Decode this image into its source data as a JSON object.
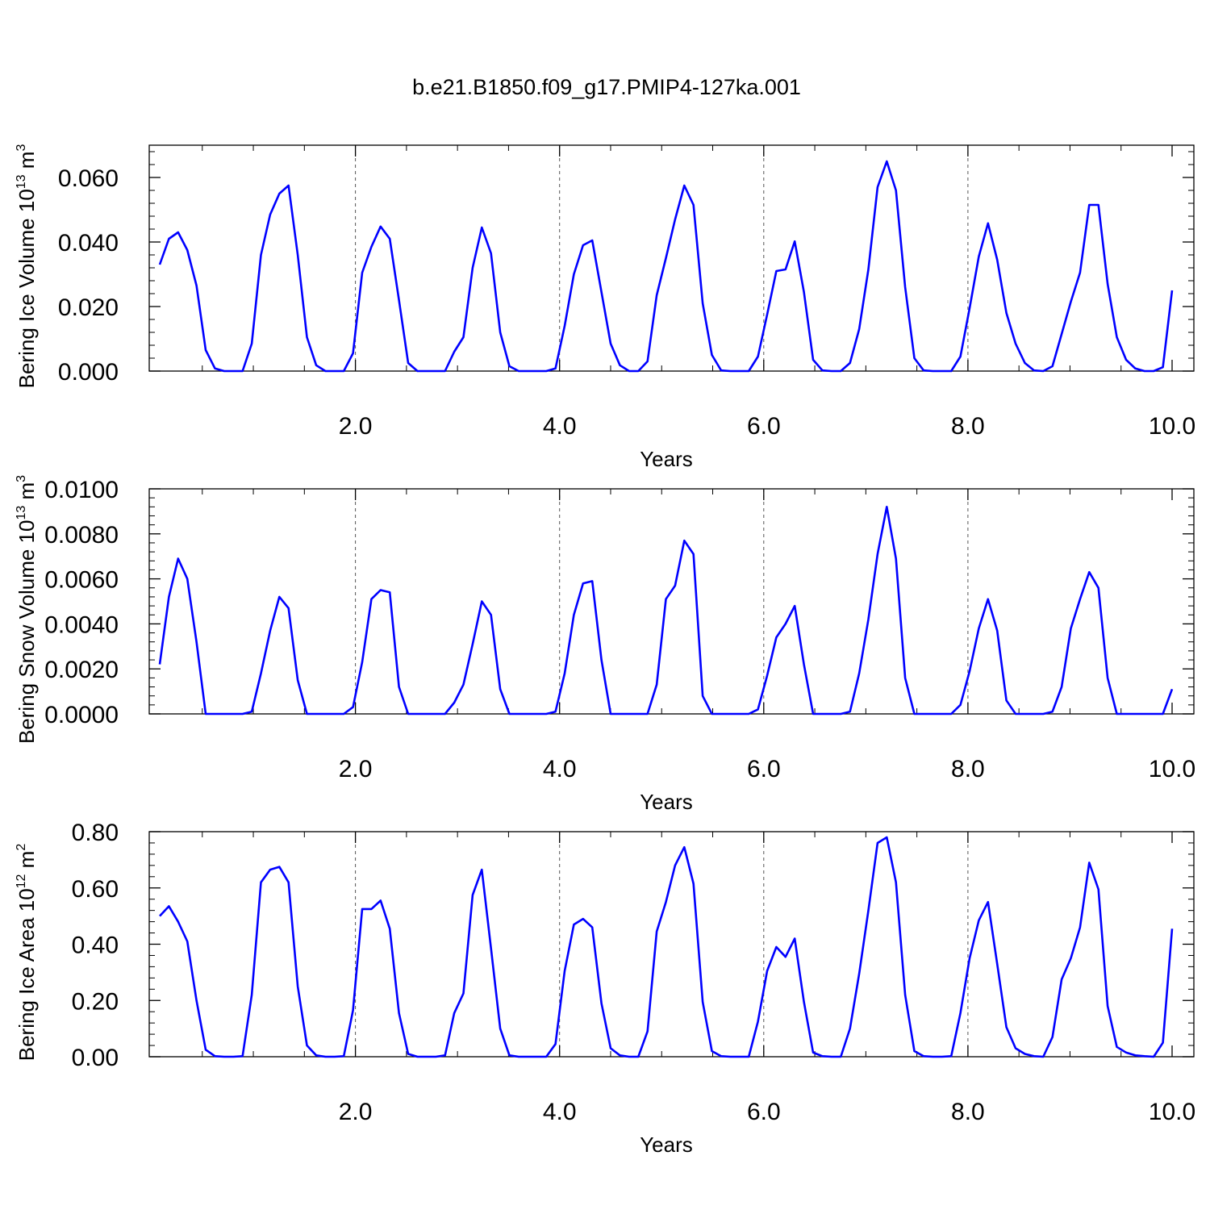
{
  "title": "b.e21.B1850.f09_g17.PMIP4-127ka.001",
  "line_color": "#0000ff",
  "chart_data": [
    {
      "type": "line",
      "ylabel": "Bering Ice Volume 10",
      "ylabel_exp": "13",
      "ylabel_unit": " m",
      "ylabel_unit_exp": "3",
      "xlabel": "Years",
      "xlim": [
        0.083,
        10.0
      ],
      "ylim": [
        0.0,
        0.07
      ],
      "xticks": [
        "2.0",
        "4.0",
        "6.0",
        "8.0",
        "10.0"
      ],
      "xtick_values": [
        2,
        4,
        6,
        8,
        10
      ],
      "yticks": [
        "0.000",
        "0.020",
        "0.040",
        "0.060"
      ],
      "ytick_values": [
        0.0,
        0.02,
        0.04,
        0.06
      ],
      "grid": "x-dashed",
      "values": [
        0.033,
        0.041,
        0.043,
        0.0375,
        0.0265,
        0.0065,
        0.0008,
        0.0,
        0.0,
        0.0,
        0.0085,
        0.036,
        0.0485,
        0.055,
        0.0575,
        0.036,
        0.0105,
        0.0018,
        0.0,
        0.0,
        0.0,
        0.0055,
        0.0305,
        0.0385,
        0.0448,
        0.041,
        0.022,
        0.0025,
        0.0,
        0.0,
        0.0,
        0.0,
        0.006,
        0.0105,
        0.032,
        0.0445,
        0.0365,
        0.012,
        0.0015,
        0.0,
        0.0,
        0.0,
        0.0,
        0.0008,
        0.014,
        0.03,
        0.039,
        0.0405,
        0.0245,
        0.0085,
        0.0018,
        0.0,
        0.0,
        0.003,
        0.0235,
        0.035,
        0.047,
        0.0575,
        0.0515,
        0.021,
        0.005,
        0.0002,
        0.0,
        0.0,
        0.0,
        0.0045,
        0.0175,
        0.031,
        0.0315,
        0.0402,
        0.0245,
        0.0035,
        0.0002,
        0.0,
        0.0,
        0.0025,
        0.013,
        0.0315,
        0.057,
        0.065,
        0.056,
        0.026,
        0.004,
        0.0002,
        0.0,
        0.0,
        0.0,
        0.0045,
        0.0195,
        0.0355,
        0.0458,
        0.0345,
        0.018,
        0.0085,
        0.0025,
        0.0002,
        0.0,
        0.0015,
        0.0115,
        0.0215,
        0.0305,
        0.0515,
        0.0515,
        0.027,
        0.0105,
        0.0035,
        0.0008,
        0.0,
        0.0,
        0.0012,
        0.025
      ]
    },
    {
      "type": "line",
      "ylabel": "Bering Snow Volume 10",
      "ylabel_exp": "13",
      "ylabel_unit": " m",
      "ylabel_unit_exp": "3",
      "xlabel": "Years",
      "xlim": [
        0.083,
        10.0
      ],
      "ylim": [
        0.0,
        0.01
      ],
      "xticks": [
        "2.0",
        "4.0",
        "6.0",
        "8.0",
        "10.0"
      ],
      "xtick_values": [
        2,
        4,
        6,
        8,
        10
      ],
      "yticks": [
        "0.0000",
        "0.0020",
        "0.0040",
        "0.0060",
        "0.0080",
        "0.0100"
      ],
      "ytick_values": [
        0.0,
        0.002,
        0.004,
        0.006,
        0.008,
        0.01
      ],
      "grid": "x-dashed",
      "values": [
        0.0022,
        0.0052,
        0.0069,
        0.006,
        0.0032,
        0.0,
        0.0,
        0.0,
        0.0,
        0.0,
        0.0001,
        0.0018,
        0.0037,
        0.0052,
        0.0047,
        0.0015,
        0.0,
        0.0,
        0.0,
        0.0,
        0.0,
        0.0003,
        0.0023,
        0.0051,
        0.0055,
        0.0054,
        0.0012,
        0.0,
        0.0,
        0.0,
        0.0,
        0.0,
        0.0005,
        0.0013,
        0.0031,
        0.005,
        0.0044,
        0.0011,
        0.0,
        0.0,
        0.0,
        0.0,
        0.0,
        0.0001,
        0.0018,
        0.0044,
        0.0058,
        0.0059,
        0.0024,
        0.0,
        0.0,
        0.0,
        0.0,
        0.0,
        0.0013,
        0.0051,
        0.0057,
        0.0077,
        0.0071,
        0.0008,
        0.0,
        0.0,
        0.0,
        0.0,
        0.0,
        0.0002,
        0.0017,
        0.0034,
        0.004,
        0.0048,
        0.0022,
        0.0,
        0.0,
        0.0,
        0.0,
        0.0001,
        0.0018,
        0.0042,
        0.0071,
        0.0092,
        0.0069,
        0.0016,
        0.0,
        0.0,
        0.0,
        0.0,
        0.0,
        0.0004,
        0.0019,
        0.0038,
        0.0051,
        0.0037,
        0.0006,
        0.0,
        0.0,
        0.0,
        0.0,
        0.0001,
        0.0012,
        0.0038,
        0.0051,
        0.0063,
        0.0056,
        0.0016,
        0.0,
        0.0,
        0.0,
        0.0,
        0.0,
        0.0,
        0.0011
      ]
    },
    {
      "type": "line",
      "ylabel": "Bering Ice Area 10",
      "ylabel_exp": "12",
      "ylabel_unit": " m",
      "ylabel_unit_exp": "2",
      "xlabel": "Years",
      "xlim": [
        0.083,
        10.0
      ],
      "ylim": [
        0.0,
        0.8
      ],
      "xticks": [
        "2.0",
        "4.0",
        "6.0",
        "8.0",
        "10.0"
      ],
      "xtick_values": [
        2,
        4,
        6,
        8,
        10
      ],
      "yticks": [
        "0.00",
        "0.20",
        "0.40",
        "0.60",
        "0.80"
      ],
      "ytick_values": [
        0.0,
        0.2,
        0.4,
        0.6,
        0.8
      ],
      "grid": "x-dashed",
      "values": [
        0.5,
        0.535,
        0.48,
        0.41,
        0.2,
        0.025,
        0.002,
        0.0,
        0.0,
        0.002,
        0.22,
        0.62,
        0.665,
        0.675,
        0.62,
        0.25,
        0.04,
        0.005,
        0.0,
        0.0,
        0.002,
        0.165,
        0.525,
        0.525,
        0.555,
        0.455,
        0.155,
        0.01,
        0.0,
        0.0,
        0.0,
        0.005,
        0.155,
        0.225,
        0.575,
        0.665,
        0.385,
        0.1,
        0.005,
        0.0,
        0.0,
        0.0,
        0.0,
        0.045,
        0.305,
        0.47,
        0.49,
        0.46,
        0.19,
        0.03,
        0.005,
        0.0,
        0.0,
        0.09,
        0.445,
        0.55,
        0.68,
        0.745,
        0.615,
        0.195,
        0.02,
        0.002,
        0.0,
        0.0,
        0.0,
        0.125,
        0.305,
        0.39,
        0.355,
        0.42,
        0.195,
        0.015,
        0.002,
        0.0,
        0.0,
        0.1,
        0.295,
        0.52,
        0.76,
        0.78,
        0.62,
        0.22,
        0.02,
        0.002,
        0.0,
        0.0,
        0.002,
        0.155,
        0.35,
        0.485,
        0.55,
        0.33,
        0.105,
        0.03,
        0.01,
        0.002,
        0.0,
        0.07,
        0.275,
        0.35,
        0.46,
        0.69,
        0.595,
        0.18,
        0.035,
        0.015,
        0.005,
        0.002,
        0.0,
        0.05,
        0.455
      ]
    }
  ]
}
